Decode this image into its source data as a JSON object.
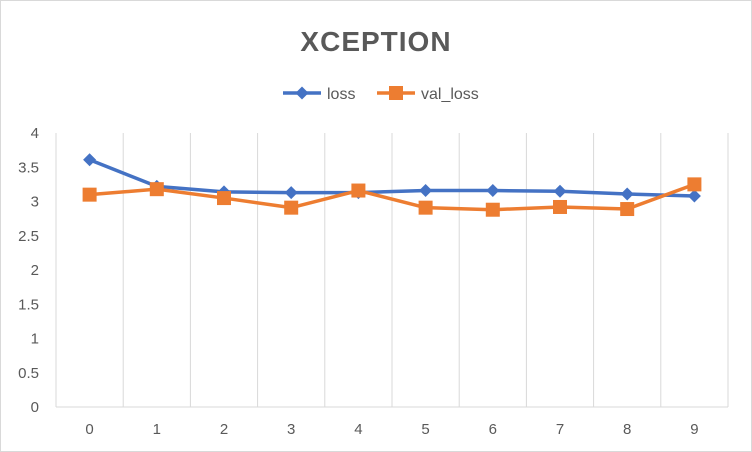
{
  "chart_data": {
    "type": "line",
    "title": "XCEPTION",
    "xlabel": "",
    "ylabel": "",
    "categories": [
      "0",
      "1",
      "2",
      "3",
      "4",
      "5",
      "6",
      "7",
      "8",
      "9"
    ],
    "series": [
      {
        "name": "loss",
        "color": "#4472C4",
        "marker": "diamond",
        "values": [
          3.61,
          3.22,
          3.14,
          3.13,
          3.13,
          3.16,
          3.16,
          3.15,
          3.11,
          3.08
        ]
      },
      {
        "name": "val_loss",
        "color": "#ED7D31",
        "marker": "square",
        "values": [
          3.1,
          3.18,
          3.05,
          2.91,
          3.16,
          2.91,
          2.88,
          2.92,
          2.89,
          3.25
        ]
      }
    ],
    "yticks": [
      "0",
      "0.5",
      "1",
      "1.5",
      "2",
      "2.5",
      "3",
      "3.5",
      "4"
    ],
    "ylim": [
      0,
      4
    ],
    "grid": "vertical",
    "legend_position": "top"
  }
}
